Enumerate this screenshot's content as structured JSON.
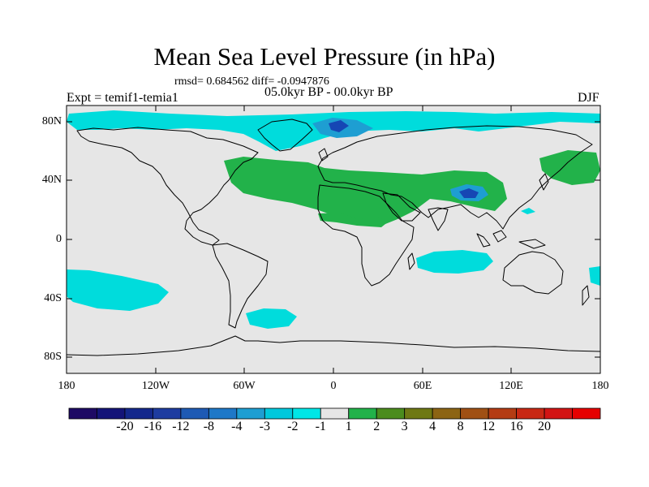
{
  "title": "Mean Sea Level Pressure (in hPa)",
  "stats_line": "rmsd= 0.684562 diff= -0.0947876",
  "period": "05.0kyr BP - 00.0kyr BP",
  "experiment": "Expt = temif1-temia1",
  "season": "DJF",
  "axes": {
    "y_ticks": [
      "80N",
      "40N",
      "0",
      "40S",
      "80S"
    ],
    "x_ticks": [
      "180",
      "120W",
      "60W",
      "0",
      "60E",
      "120E",
      "180"
    ]
  },
  "colors": {
    "background_field": "#e6e6e6",
    "cyan": "#00dcdc",
    "mid_blue": "#1e9ed2",
    "dark_blue": "#1646b4",
    "green": "#22b24a",
    "coast": "#000000"
  },
  "colorbar": {
    "colors": [
      "#1e0a64",
      "#141478",
      "#14288c",
      "#1e3ca0",
      "#1e5ab4",
      "#1e78c8",
      "#1e9ed2",
      "#00c8dc",
      "#00e6e6",
      "#e6e6e6",
      "#22b24a",
      "#4b8c1e",
      "#6e7814",
      "#8c6414",
      "#a05014",
      "#b43c14",
      "#c82814",
      "#d21414",
      "#e60000"
    ],
    "labels": [
      "-20",
      "-16",
      "-12",
      "-8",
      "-4",
      "-3",
      "-2",
      "-1",
      "1",
      "2",
      "3",
      "4",
      "8",
      "12",
      "16",
      "20"
    ]
  }
}
